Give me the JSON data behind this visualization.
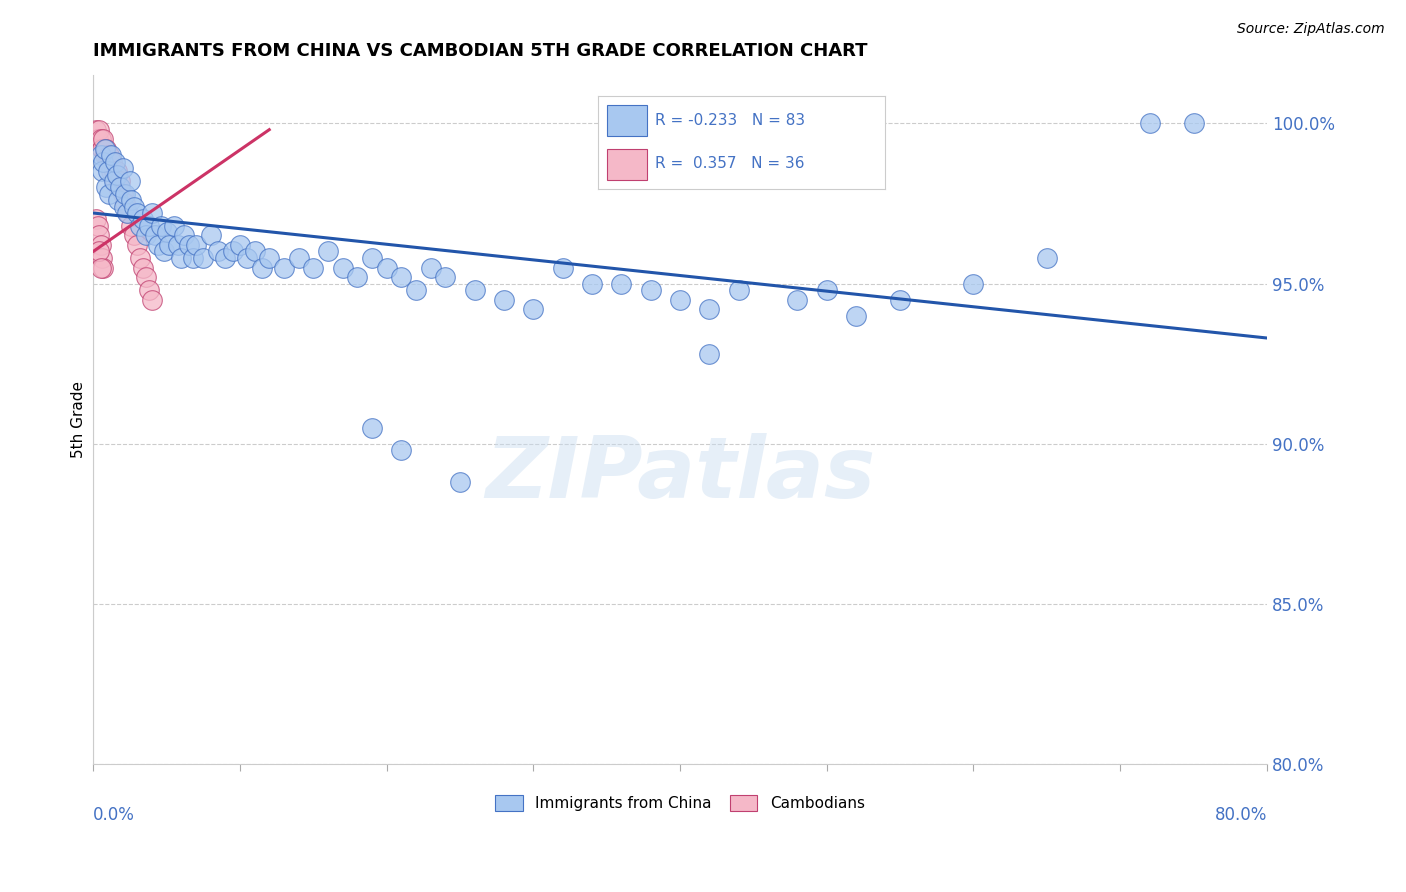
{
  "title": "IMMIGRANTS FROM CHINA VS CAMBODIAN 5TH GRADE CORRELATION CHART",
  "source": "Source: ZipAtlas.com",
  "ylabel": "5th Grade",
  "xlim": [
    0.0,
    0.8
  ],
  "ylim": [
    0.8,
    1.015
  ],
  "blue_R": -0.233,
  "blue_N": 83,
  "pink_R": 0.357,
  "pink_N": 36,
  "blue_color": "#A8C8F0",
  "pink_color": "#F5B8C8",
  "blue_edge_color": "#4472C4",
  "pink_edge_color": "#C04070",
  "blue_line_color": "#2255AA",
  "pink_line_color": "#CC3366",
  "watermark": "ZIPatlas",
  "blue_line_x0": 0.0,
  "blue_line_y0": 0.972,
  "blue_line_x1": 0.8,
  "blue_line_y1": 0.933,
  "pink_line_x0": 0.0,
  "pink_line_y0": 0.96,
  "pink_line_x1": 0.12,
  "pink_line_y1": 0.998,
  "blue_x": [
    0.005,
    0.006,
    0.007,
    0.008,
    0.009,
    0.01,
    0.011,
    0.012,
    0.014,
    0.015,
    0.016,
    0.017,
    0.018,
    0.02,
    0.021,
    0.022,
    0.023,
    0.025,
    0.026,
    0.028,
    0.03,
    0.032,
    0.034,
    0.036,
    0.038,
    0.04,
    0.042,
    0.044,
    0.046,
    0.048,
    0.05,
    0.052,
    0.055,
    0.058,
    0.06,
    0.062,
    0.065,
    0.068,
    0.07,
    0.075,
    0.08,
    0.085,
    0.09,
    0.095,
    0.1,
    0.105,
    0.11,
    0.115,
    0.12,
    0.13,
    0.14,
    0.15,
    0.16,
    0.17,
    0.18,
    0.19,
    0.2,
    0.21,
    0.22,
    0.23,
    0.24,
    0.26,
    0.28,
    0.3,
    0.32,
    0.34,
    0.36,
    0.38,
    0.4,
    0.42,
    0.44,
    0.48,
    0.52,
    0.42,
    0.5,
    0.55,
    0.6,
    0.65,
    0.72,
    0.75,
    0.19,
    0.21,
    0.25
  ],
  "blue_y": [
    0.99,
    0.985,
    0.988,
    0.992,
    0.98,
    0.985,
    0.978,
    0.99,
    0.982,
    0.988,
    0.984,
    0.976,
    0.98,
    0.986,
    0.974,
    0.978,
    0.972,
    0.982,
    0.976,
    0.974,
    0.972,
    0.968,
    0.97,
    0.965,
    0.968,
    0.972,
    0.965,
    0.962,
    0.968,
    0.96,
    0.966,
    0.962,
    0.968,
    0.962,
    0.958,
    0.965,
    0.962,
    0.958,
    0.962,
    0.958,
    0.965,
    0.96,
    0.958,
    0.96,
    0.962,
    0.958,
    0.96,
    0.955,
    0.958,
    0.955,
    0.958,
    0.955,
    0.96,
    0.955,
    0.952,
    0.958,
    0.955,
    0.952,
    0.948,
    0.955,
    0.952,
    0.948,
    0.945,
    0.942,
    0.955,
    0.95,
    0.95,
    0.948,
    0.945,
    0.942,
    0.948,
    0.945,
    0.94,
    0.928,
    0.948,
    0.945,
    0.95,
    0.958,
    1.0,
    1.0,
    0.905,
    0.898,
    0.888
  ],
  "pink_x": [
    0.002,
    0.003,
    0.004,
    0.005,
    0.006,
    0.007,
    0.008,
    0.009,
    0.01,
    0.011,
    0.012,
    0.013,
    0.014,
    0.015,
    0.016,
    0.017,
    0.018,
    0.02,
    0.022,
    0.024,
    0.026,
    0.028,
    0.03,
    0.032,
    0.034,
    0.036,
    0.038,
    0.04,
    0.002,
    0.003,
    0.004,
    0.005,
    0.006,
    0.007,
    0.004,
    0.005
  ],
  "pink_y": [
    0.998,
    0.995,
    0.998,
    0.995,
    0.992,
    0.995,
    0.99,
    0.992,
    0.988,
    0.99,
    0.985,
    0.988,
    0.985,
    0.982,
    0.985,
    0.98,
    0.982,
    0.978,
    0.975,
    0.972,
    0.968,
    0.965,
    0.962,
    0.958,
    0.955,
    0.952,
    0.948,
    0.945,
    0.97,
    0.968,
    0.965,
    0.962,
    0.958,
    0.955,
    0.96,
    0.955
  ]
}
